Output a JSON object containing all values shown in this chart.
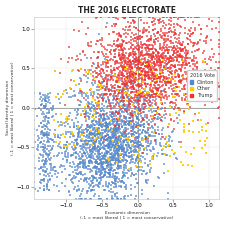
{
  "title": "THE 2016 ELECTORATE",
  "xlabel": "Economic dimension",
  "xlabel_sub": "(-1 = most liberal | 1 = most conservative)",
  "ylabel": "Social Identity dimension",
  "ylabel_sub": "(-1 = most liberal | 1 = most conservative)",
  "xlim": [
    -1.45,
    1.15
  ],
  "ylim": [
    -1.15,
    1.15
  ],
  "xticks": [
    -1.0,
    -0.5,
    0.0,
    0.5,
    1.0
  ],
  "yticks": [
    -1.0,
    -0.5,
    0.0,
    0.5,
    1.0
  ],
  "legend_title": "2016 Vote",
  "legend_labels": [
    "Clinton",
    "Other",
    "Trump"
  ],
  "legend_colors": [
    "#5588CC",
    "#FFCC00",
    "#EE3333"
  ],
  "clinton_color": "#5588CC",
  "other_color": "#FFCC00",
  "trump_color": "#EE3333",
  "background_color": "#FFFFFF",
  "plot_bg_color": "#FFFFFF",
  "n_clinton": 2200,
  "n_trump": 1800,
  "n_other": 250,
  "seed": 77
}
